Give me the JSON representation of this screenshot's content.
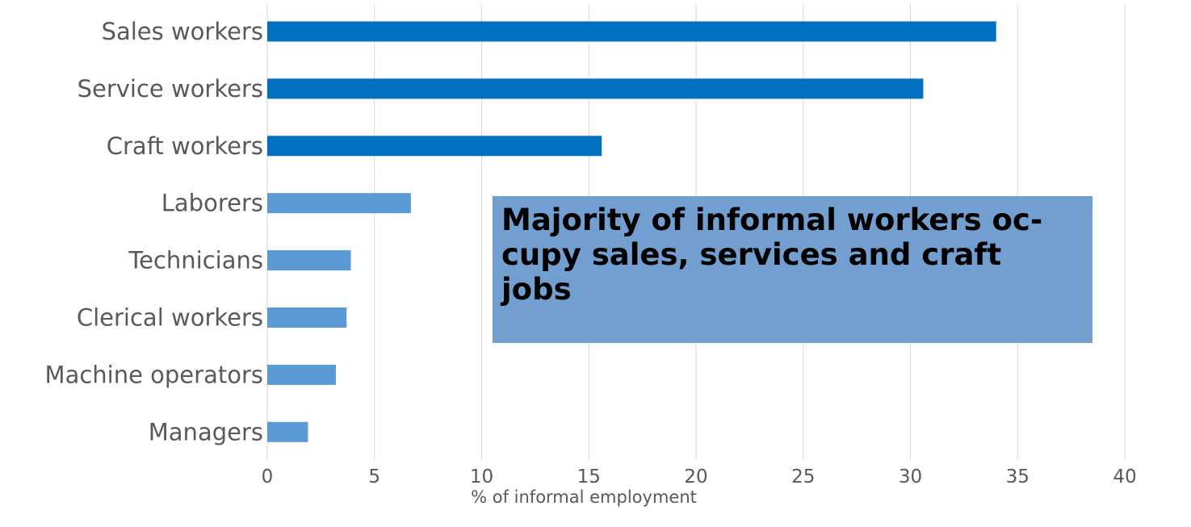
{
  "chart_data": {
    "type": "bar",
    "orientation": "horizontal",
    "categories": [
      "Sales workers",
      "Service workers",
      "Craft workers",
      "Laborers",
      "Technicians",
      "Clerical workers",
      "Machine operators",
      "Managers"
    ],
    "values": [
      34.0,
      30.6,
      15.6,
      6.7,
      3.9,
      3.7,
      3.2,
      1.9
    ],
    "highlight_colors": [
      "#0070c0",
      "#0070c0",
      "#0070c0",
      "#5b9bd5",
      "#5b9bd5",
      "#5b9bd5",
      "#5b9bd5",
      "#5b9bd5"
    ],
    "xlabel": "% of informal employment",
    "xlim": [
      0,
      40
    ],
    "xticks": [
      "0",
      "5",
      "10",
      "15",
      "20",
      "25",
      "30",
      "35",
      "40"
    ],
    "grid": "vertical",
    "annotation": "Majority of informal workers oc-cupy sales, services and craft jobs"
  },
  "colors": {
    "dark_bar": "#0070c0",
    "light_bar": "#5b9bd5",
    "callout_background": "#729fcf",
    "text": "#595959"
  }
}
